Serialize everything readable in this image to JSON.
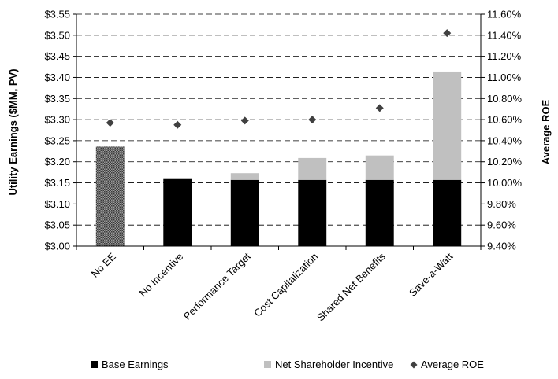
{
  "chart_data": {
    "type": "bar",
    "categories": [
      "No EE",
      "No Incentive",
      "Performance Target",
      "Cost Capitalization",
      "Shared Net Benefits",
      "Save-a-Watt"
    ],
    "series": [
      {
        "name": "Base Earnings",
        "kind": "stacked-bar",
        "axis": "left",
        "color": "#000000",
        "values": [
          3.236,
          3.159,
          3.157,
          3.157,
          3.157,
          3.157
        ]
      },
      {
        "name": "Net Shareholder Incentive",
        "kind": "stacked-bar",
        "axis": "left",
        "color": "#c0c0c0",
        "values": [
          0,
          0,
          0.016,
          0.052,
          0.058,
          0.257
        ]
      },
      {
        "name": "Average ROE",
        "kind": "diamond-marker",
        "axis": "right",
        "color": "#404040",
        "values": [
          10.57,
          10.55,
          10.59,
          10.6,
          10.71,
          11.42
        ]
      }
    ],
    "no_ee_pattern": "checkered",
    "ylabel": "Utility Earnings ($MM, PV)",
    "y2label": "Average ROE",
    "ylim": [
      3.0,
      3.55
    ],
    "y2lim": [
      9.4,
      11.6
    ],
    "y_ticks": [
      "$3.00",
      "$3.05",
      "$3.10",
      "$3.15",
      "$3.20",
      "$3.25",
      "$3.30",
      "$3.35",
      "$3.40",
      "$3.45",
      "$3.50",
      "$3.55"
    ],
    "y2_ticks": [
      "9.40%",
      "9.60%",
      "9.80%",
      "10.00%",
      "10.20%",
      "10.40%",
      "10.60%",
      "10.80%",
      "11.00%",
      "11.20%",
      "11.40%",
      "11.60%"
    ],
    "grid": "horizontal-dashed",
    "legend_position": "bottom",
    "legend": [
      {
        "label": "Base Earnings",
        "marker": "square",
        "color": "#000000"
      },
      {
        "label": "Net Shareholder Incentive",
        "marker": "square",
        "color": "#c0c0c0"
      },
      {
        "label": "Average ROE",
        "marker": "diamond",
        "color": "#404040"
      }
    ]
  }
}
